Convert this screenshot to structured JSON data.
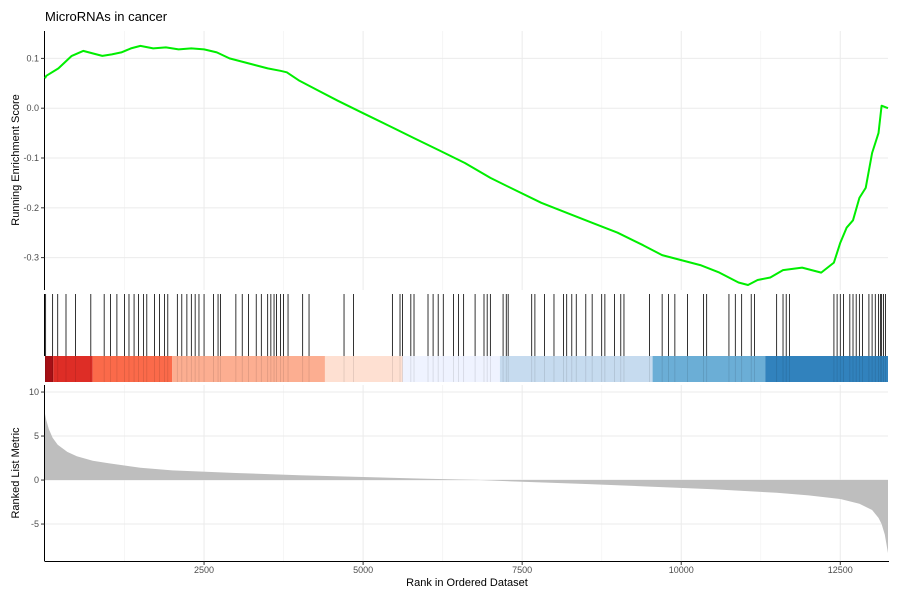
{
  "chart_data": {
    "type": "line",
    "title": "MicroRNAs in cancer",
    "xlabel": "Rank in Ordered Dataset",
    "xlim": [
      0,
      13250
    ],
    "x_ticks": [
      2500,
      5000,
      7500,
      10000,
      12500
    ],
    "x_tick_labels": [
      "2500",
      "5000",
      "7500",
      "10000",
      "12500"
    ],
    "grid": true,
    "enrichment_panel": {
      "ylabel": "Running Enrichment Score",
      "ylim": [
        -0.365,
        0.155
      ],
      "y_ticks": [
        0.1,
        0.0,
        -0.1,
        -0.2,
        -0.3
      ],
      "y_tick_labels": [
        "0.1",
        "0.0",
        "-0.1",
        "-0.2",
        "-0.3"
      ],
      "line_color": "#00ee00",
      "x": [
        0,
        20,
        210,
        420,
        600,
        750,
        900,
        1050,
        1200,
        1350,
        1500,
        1700,
        1900,
        2100,
        2300,
        2500,
        2700,
        2900,
        3200,
        3500,
        3700,
        3800,
        4000,
        4300,
        4600,
        5000,
        5400,
        5800,
        6200,
        6600,
        7000,
        7400,
        7800,
        8200,
        8600,
        9000,
        9400,
        9700,
        10000,
        10300,
        10600,
        10900,
        11050,
        11200,
        11400,
        11600,
        11900,
        12200,
        12400,
        12500,
        12600,
        12700,
        12800,
        12900,
        13000,
        13100,
        13150,
        13250
      ],
      "y": [
        0.06,
        0.065,
        0.08,
        0.105,
        0.115,
        0.11,
        0.105,
        0.108,
        0.112,
        0.12,
        0.125,
        0.12,
        0.122,
        0.118,
        0.12,
        0.118,
        0.112,
        0.1,
        0.09,
        0.08,
        0.075,
        0.072,
        0.055,
        0.035,
        0.015,
        -0.01,
        -0.035,
        -0.06,
        -0.085,
        -0.11,
        -0.14,
        -0.165,
        -0.19,
        -0.21,
        -0.23,
        -0.25,
        -0.275,
        -0.295,
        -0.305,
        -0.315,
        -0.33,
        -0.35,
        -0.355,
        -0.345,
        -0.34,
        -0.325,
        -0.32,
        -0.33,
        -0.31,
        -0.27,
        -0.24,
        -0.225,
        -0.18,
        -0.16,
        -0.09,
        -0.05,
        0.005,
        0.0
      ]
    },
    "hits_panel": {
      "tick_color": "#000000",
      "hit_ranks": [
        10,
        120,
        200,
        330,
        480,
        720,
        930,
        1030,
        1130,
        1250,
        1320,
        1400,
        1470,
        1550,
        1600,
        1720,
        1800,
        1880,
        1930,
        2080,
        2150,
        2230,
        2300,
        2360,
        2420,
        2500,
        2650,
        2720,
        2760,
        3000,
        3100,
        3200,
        3320,
        3400,
        3500,
        3550,
        3600,
        3640,
        3700,
        3750,
        3820,
        4050,
        4150,
        4700,
        4850,
        5460,
        5580,
        5620,
        5750,
        5800,
        6020,
        6100,
        6180,
        6260,
        6420,
        6500,
        6580,
        6760,
        6900,
        6950,
        7000,
        7200,
        7250,
        7280,
        7650,
        7700,
        7850,
        8000,
        8150,
        8200,
        8280,
        8350,
        8500,
        8600,
        8750,
        8800,
        8950,
        9050,
        9100,
        9500,
        9700,
        9800,
        9900,
        10100,
        10350,
        10400,
        10750,
        10850,
        10950,
        11100,
        11150,
        11500,
        11600,
        11650,
        11700,
        12400,
        12450,
        12500,
        12550,
        12650,
        12700,
        12750,
        12800,
        12850,
        12950,
        13000,
        13050,
        13100,
        13130,
        13150,
        13180,
        13210
      ]
    },
    "color_bar": {
      "segments": [
        {
          "from": 0,
          "to": 130,
          "color": "#a50f15"
        },
        {
          "from": 130,
          "to": 750,
          "color": "#de2d26"
        },
        {
          "from": 750,
          "to": 2000,
          "color": "#fb6a4a"
        },
        {
          "from": 2000,
          "to": 4400,
          "color": "#fcae91"
        },
        {
          "from": 4400,
          "to": 5620,
          "color": "#fee0d2"
        },
        {
          "from": 5620,
          "to": 7150,
          "color": "#eff3ff"
        },
        {
          "from": 7150,
          "to": 9550,
          "color": "#c6dbef"
        },
        {
          "from": 9550,
          "to": 11320,
          "color": "#6baed6"
        },
        {
          "from": 11320,
          "to": 13250,
          "color": "#3182bd"
        }
      ]
    },
    "ranked_panel": {
      "ylabel": "Ranked List Metric",
      "ylim": [
        -9.2,
        10.8
      ],
      "y_ticks": [
        10,
        5,
        0,
        -5
      ],
      "y_tick_labels": [
        "10",
        "5",
        "0",
        "-5"
      ],
      "fill_color": "#bebebe",
      "x": [
        0,
        20,
        60,
        120,
        200,
        350,
        500,
        750,
        1000,
        1500,
        2000,
        3000,
        4000,
        5000,
        6000,
        6800,
        7000,
        7500,
        8500,
        9500,
        10500,
        11500,
        12000,
        12500,
        12800,
        13000,
        13100,
        13150,
        13200,
        13250
      ],
      "y": [
        7.5,
        6.8,
        5.8,
        4.8,
        4.0,
        3.2,
        2.7,
        2.2,
        1.9,
        1.4,
        1.1,
        0.8,
        0.55,
        0.35,
        0.15,
        0.02,
        -0.05,
        -0.2,
        -0.45,
        -0.75,
        -1.05,
        -1.45,
        -1.75,
        -2.15,
        -2.7,
        -3.4,
        -4.3,
        -5.0,
        -6.2,
        -8.3
      ]
    }
  }
}
